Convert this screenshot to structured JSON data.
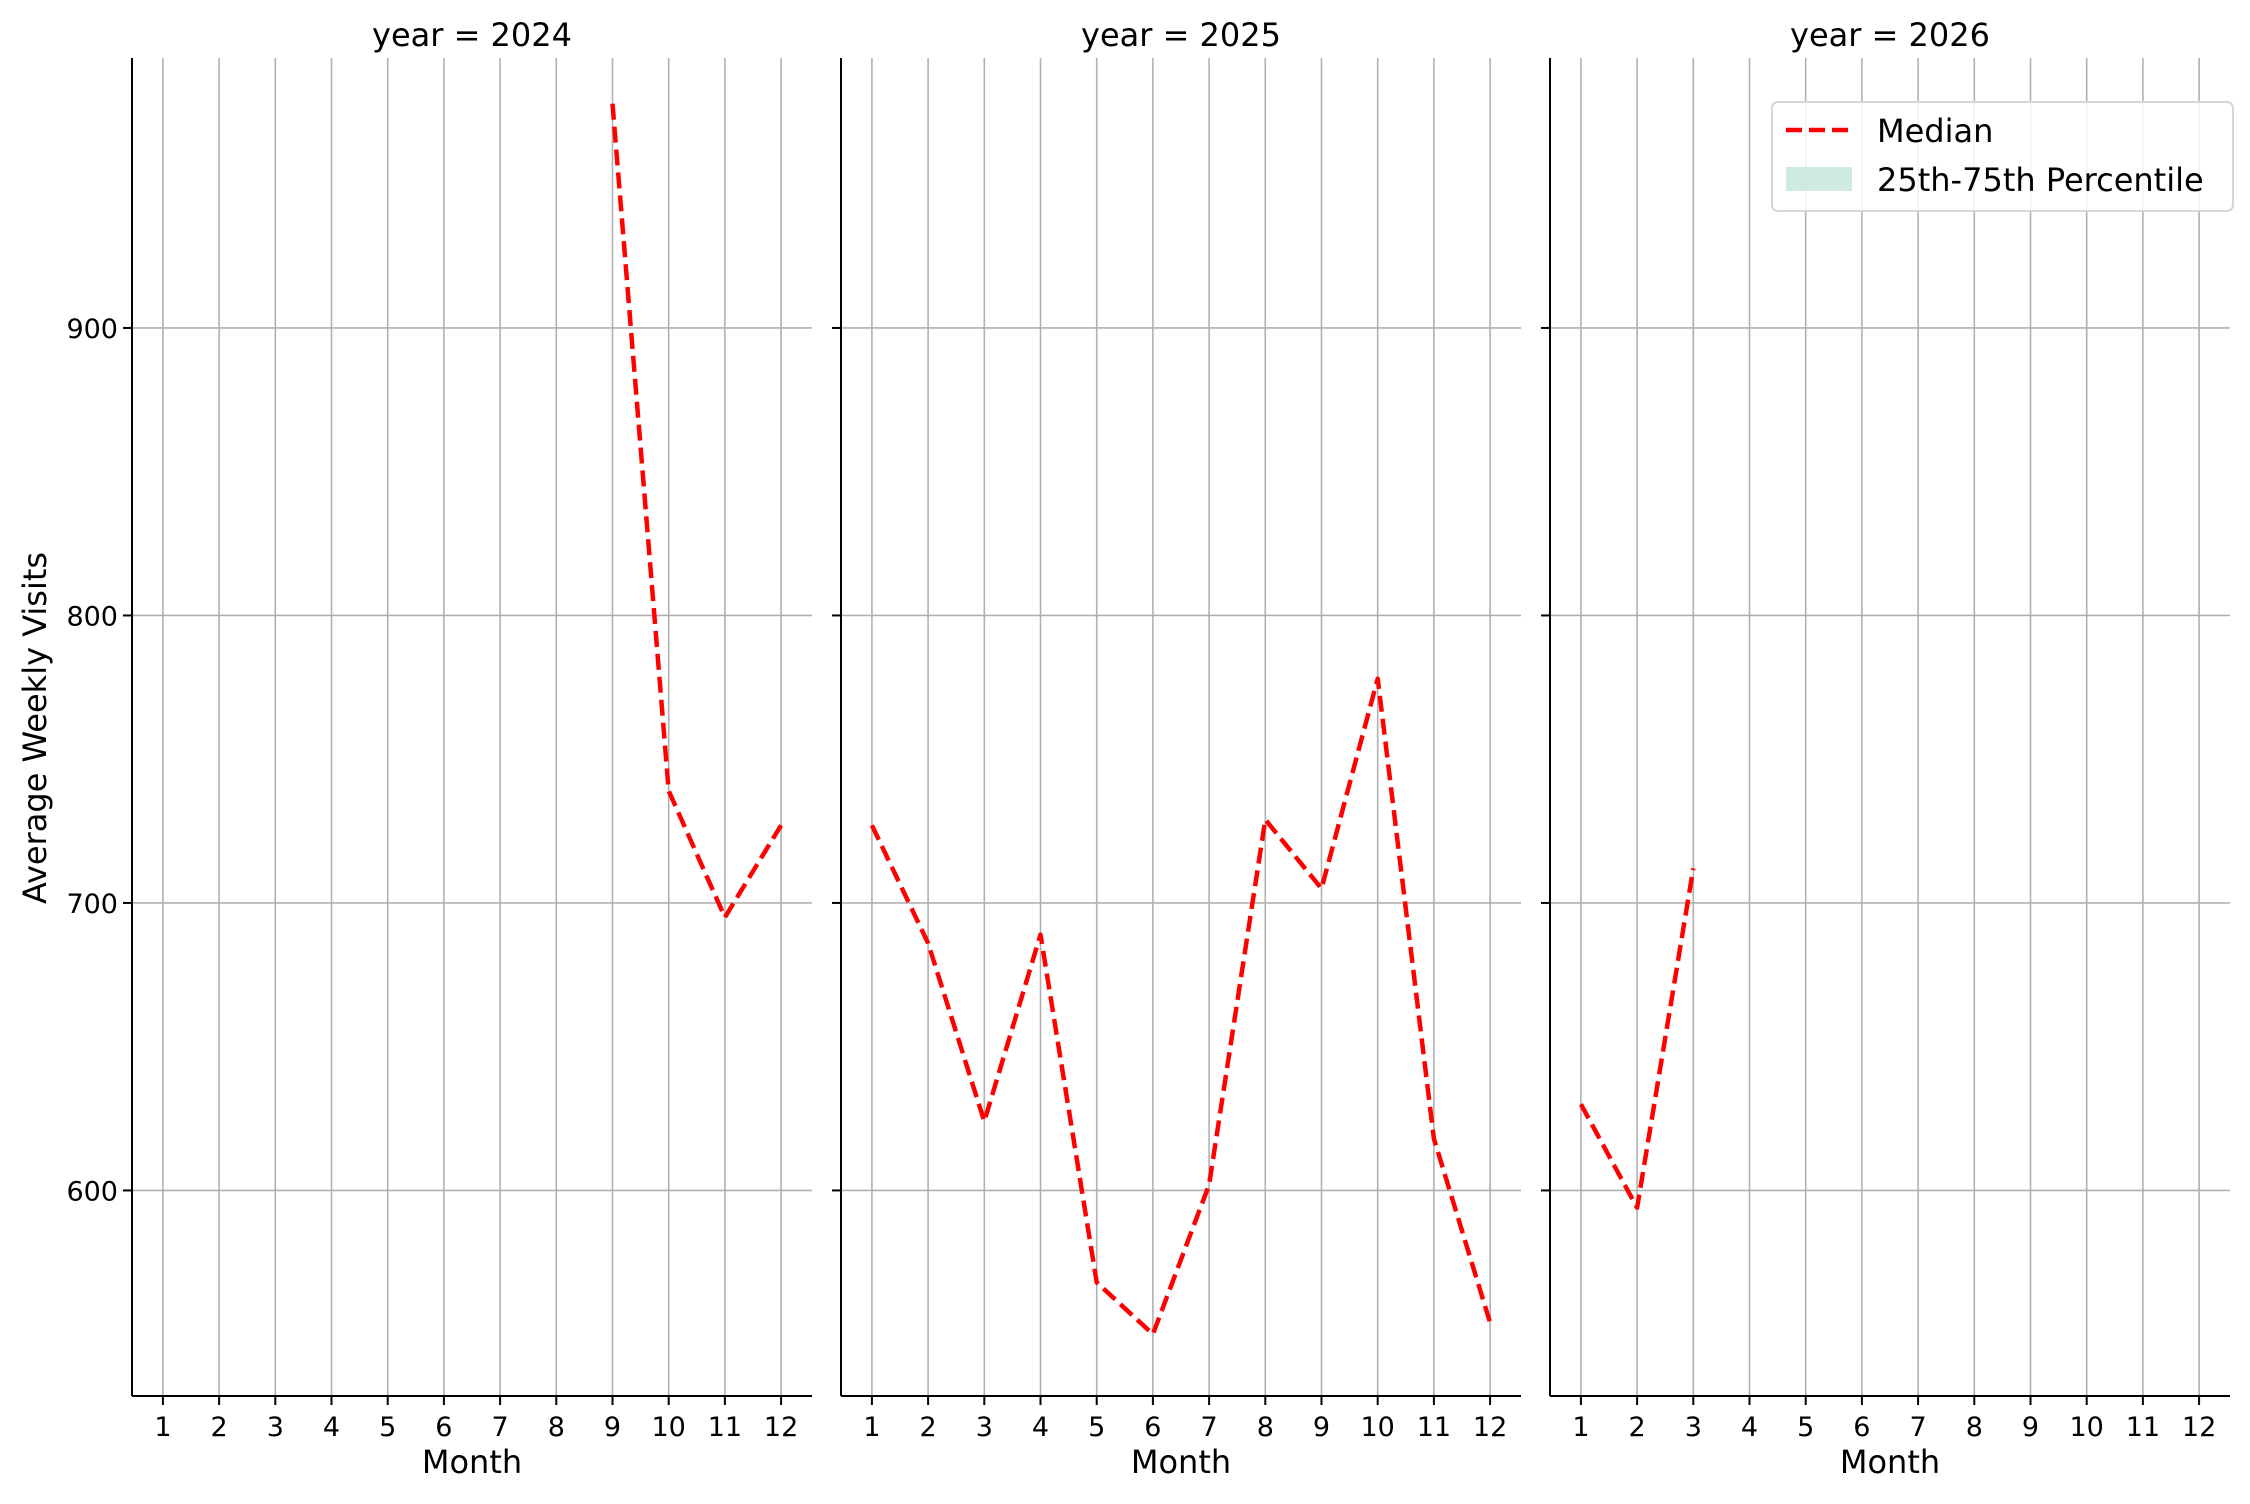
{
  "chart_data": {
    "type": "line",
    "ylabel": "Average Weekly Visits",
    "xlabel": "Month",
    "ylim": [
      528.5,
      993.9
    ],
    "yticks": [
      600,
      700,
      800,
      900
    ],
    "xlim": [
      0.45,
      12.55
    ],
    "xticks": [
      1,
      2,
      3,
      4,
      5,
      6,
      7,
      8,
      9,
      10,
      11,
      12
    ],
    "grid": true,
    "legend": {
      "placement": "top-right",
      "entries": [
        {
          "label": "Median",
          "style": "dashed-line",
          "color": "#ff0000"
        },
        {
          "label": "25th-75th Percentile",
          "style": "filled-band",
          "color": "#cfeae0"
        }
      ]
    },
    "panels": [
      {
        "title": "year = 2024",
        "series": [
          {
            "name": "Median",
            "x": [
              9,
              10,
              11,
              12
            ],
            "y": [
              978,
              739,
              695,
              727
            ]
          }
        ]
      },
      {
        "title": "year = 2025",
        "series": [
          {
            "name": "Median",
            "x": [
              1,
              2,
              3,
              4,
              5,
              6,
              7,
              8,
              9,
              10,
              11,
              12
            ],
            "y": [
              727,
              686,
              624,
              689,
              568,
              550,
              602,
              729,
              705,
              778,
              618,
              554
            ]
          }
        ]
      },
      {
        "title": "year = 2026",
        "series": [
          {
            "name": "Median",
            "x": [
              1,
              2,
              3
            ],
            "y": [
              630,
              594,
              712
            ]
          }
        ]
      }
    ],
    "colors": {
      "line": "#ff0000",
      "band": "#cfeae0",
      "grid": "#b0b0b0",
      "axis": "#000000"
    }
  }
}
